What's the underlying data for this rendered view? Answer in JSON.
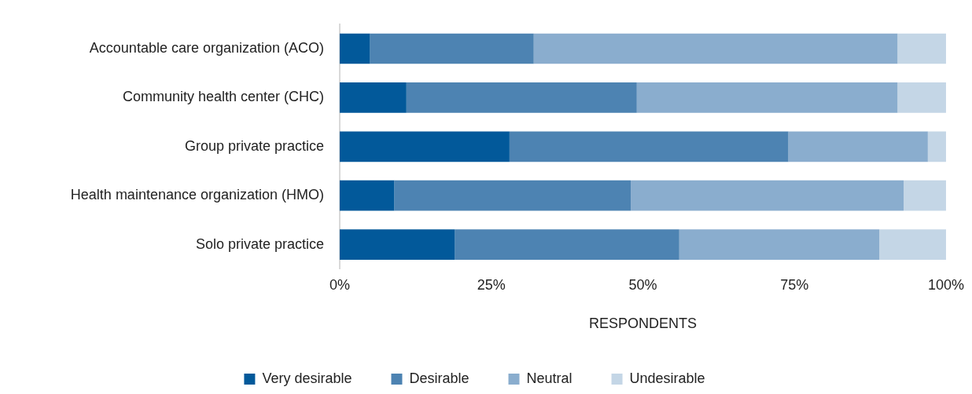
{
  "chart_data": {
    "type": "bar",
    "orientation": "horizontal",
    "stacked": true,
    "categories": [
      "Accountable care organization (ACO)",
      "Community health center (CHC)",
      "Group private practice",
      "Health maintenance organization (HMO)",
      "Solo private practice"
    ],
    "series": [
      {
        "name": "Very desirable",
        "color": "#02599a",
        "values": [
          5,
          11,
          28,
          9,
          19
        ]
      },
      {
        "name": "Desirable",
        "color": "#4d83b2",
        "values": [
          27,
          38,
          46,
          39,
          37
        ]
      },
      {
        "name": "Neutral",
        "color": "#8aadce",
        "values": [
          60,
          43,
          23,
          45,
          33
        ]
      },
      {
        "name": "Undesirable",
        "color": "#c4d6e6",
        "values": [
          8,
          8,
          3,
          7,
          11
        ]
      }
    ],
    "xlim": [
      0,
      100
    ],
    "xticks": [
      {
        "value": 0,
        "label": "0%"
      },
      {
        "value": 25,
        "label": "25%"
      },
      {
        "value": 50,
        "label": "50%"
      },
      {
        "value": 75,
        "label": "75%"
      },
      {
        "value": 100,
        "label": "100%"
      }
    ],
    "xlabel": "RESPONDENTS",
    "grid": false,
    "legend": "bottom"
  }
}
